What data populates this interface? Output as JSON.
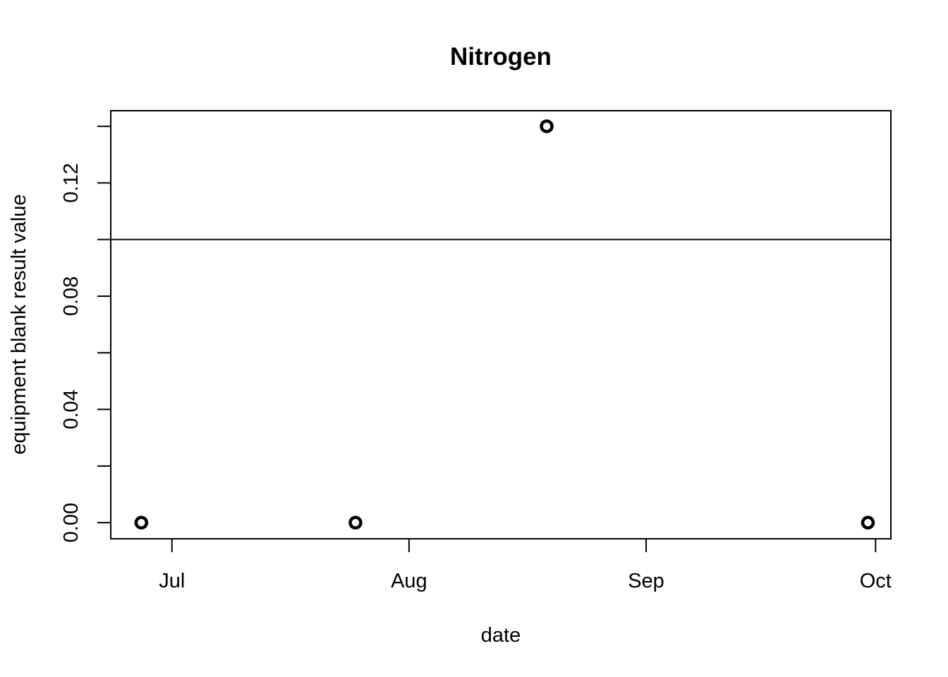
{
  "chart_data": {
    "type": "scatter",
    "title": "Nitrogen",
    "xlabel": "date",
    "ylabel": "equipment blank result value",
    "x_axis_type": "date",
    "xlim": [
      "2023-06-23",
      "2023-10-03"
    ],
    "ylim": [
      -0.0057,
      0.1455
    ],
    "x_ticks": [
      {
        "value": "2023-07-01",
        "label": "Jul"
      },
      {
        "value": "2023-08-01",
        "label": "Aug"
      },
      {
        "value": "2023-09-01",
        "label": "Sep"
      },
      {
        "value": "2023-10-01",
        "label": "Oct"
      }
    ],
    "y_ticks": [
      {
        "value": 0.0,
        "label": "0.00"
      },
      {
        "value": 0.02,
        "label": ""
      },
      {
        "value": 0.04,
        "label": "0.04"
      },
      {
        "value": 0.06,
        "label": ""
      },
      {
        "value": 0.08,
        "label": "0.08"
      },
      {
        "value": 0.1,
        "label": ""
      },
      {
        "value": 0.12,
        "label": "0.12"
      },
      {
        "value": 0.14,
        "label": ""
      }
    ],
    "reference_line": {
      "y": 0.1
    },
    "series": [
      {
        "points": [
          {
            "x": "2023-06-27",
            "y": 0.0
          },
          {
            "x": "2023-07-25",
            "y": 0.0
          },
          {
            "x": "2023-08-19",
            "y": 0.14
          },
          {
            "x": "2023-09-30",
            "y": 0.0
          }
        ]
      }
    ],
    "grid": false,
    "legend": "none"
  }
}
